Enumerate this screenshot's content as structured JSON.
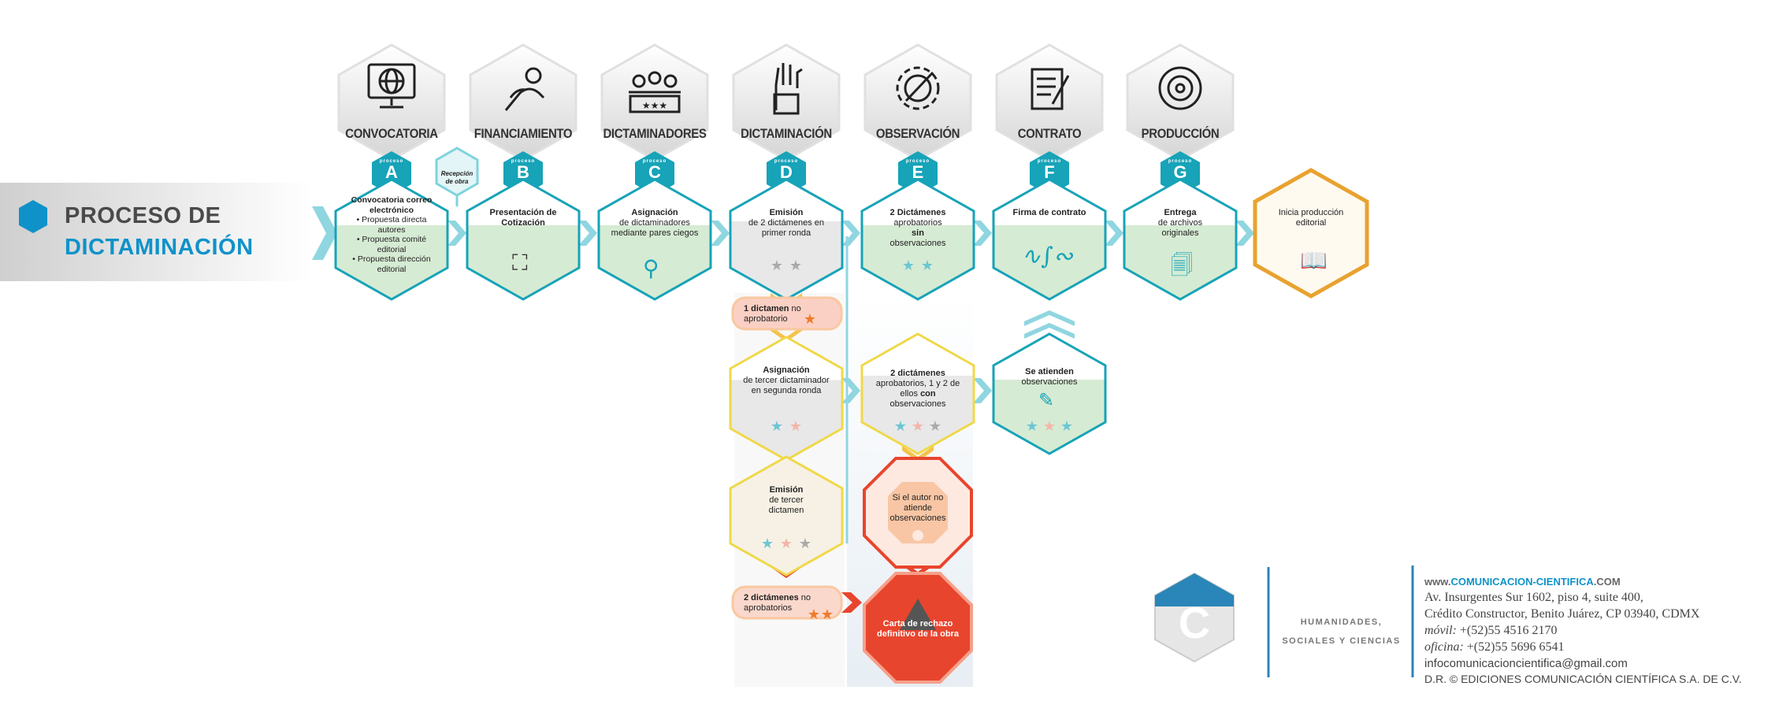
{
  "title": {
    "line1": "PROCESO DE",
    "line2": "DICTAMINACIÓN"
  },
  "process_prefix": "proceso",
  "categories": [
    {
      "label": "CONVOCATORIA",
      "letter": "A",
      "icon": "globe-monitor-icon"
    },
    {
      "label": "FINANCIAMIENTO",
      "letter": "B",
      "icon": "hand-coin-icon"
    },
    {
      "label": "DICTAMINADORES",
      "letter": "C",
      "icon": "panel-people-icon"
    },
    {
      "label": "DICTAMINACIÓN",
      "letter": "D",
      "icon": "raised-hand-icon"
    },
    {
      "label": "OBSERVACIÓN",
      "letter": "E",
      "icon": "gear-pencil-icon"
    },
    {
      "label": "CONTRATO",
      "letter": "F",
      "icon": "document-pen-icon"
    },
    {
      "label": "PRODUCCIÓN",
      "letter": "G",
      "icon": "reel-icon"
    }
  ],
  "reception": {
    "line1": "Recepción",
    "line2": "de obra"
  },
  "steps": {
    "a": {
      "bold": "Convocatoria correo electrónico",
      "items": [
        "• Propuesta directa autores",
        "• Propuesta comité editorial",
        "• Propuesta dirección editorial"
      ]
    },
    "b": {
      "bold": "Presentación de Cotización"
    },
    "c": {
      "bold": "Asignación",
      "text": "de dictaminadores mediante pares ciegos"
    },
    "d": {
      "bold": "Emisión",
      "text": "de 2 dictámenes en primer ronda"
    },
    "e": {
      "bold": "2 Dictámenes",
      "text1": "aprobatorios",
      "bold2": "sin",
      "text2": "observaciones"
    },
    "f": {
      "bold": "Firma de contrato"
    },
    "g": {
      "bold": "Entrega",
      "text": "de archivos originales"
    },
    "h": {
      "text": "Inicia producción editorial"
    },
    "pill1": {
      "bold": "1 dictamen",
      "text": "no aprobatorio"
    },
    "assign3": {
      "bold": "Asignación",
      "text": "de tercer dictaminador en segunda ronda"
    },
    "emit3": {
      "bold": "Emisión",
      "text": "de tercer dictamen"
    },
    "pill2": {
      "bold": "2 dictámenes",
      "text": "no aprobatorios"
    },
    "obs2": {
      "bold": "2 dictámenes",
      "text": "aprobatorios, 1 y 2 de ellos",
      "bold2": "con",
      "text2": "observaciones"
    },
    "attend": {
      "bold": "Se atienden",
      "text": "observaciones"
    },
    "noattend": {
      "text": "Si el autor no atiende observaciones"
    },
    "reject": {
      "text": "Carta de rechazo definitivo de la obra"
    }
  },
  "footer": {
    "logo_letter": "C",
    "tagline1": "HUMANIDADES,",
    "tagline2": "SOCIALES Y CIENCIAS",
    "web_prefix": "www.",
    "web_domain": "comunicacion-cientifica",
    "web_suffix": ".com",
    "address1": "Av. Insurgentes Sur 1602, piso 4, suite 400,",
    "address2": "Crédito Constructor, Benito Juárez, CP 03940, CDMX",
    "mobile_label": "móvil:",
    "mobile": " +(52)55 4516 2170",
    "office_label": "oficina:",
    "office": " +(52)55 5696 6541",
    "email": "infocomunicacioncientifica@gmail.com",
    "copyright": "D.R. © EDICIONES COMUNICACIÓN CIENTÍFICA S.A. DE C.V."
  },
  "colors": {
    "teal": "#17a3b8",
    "green_fill": "#d6ebd3",
    "yellow": "#f0d84a",
    "orange": "#f07a2a",
    "red": "#e8452e",
    "blue": "#0f92c9",
    "gold": "#e8a22f"
  }
}
